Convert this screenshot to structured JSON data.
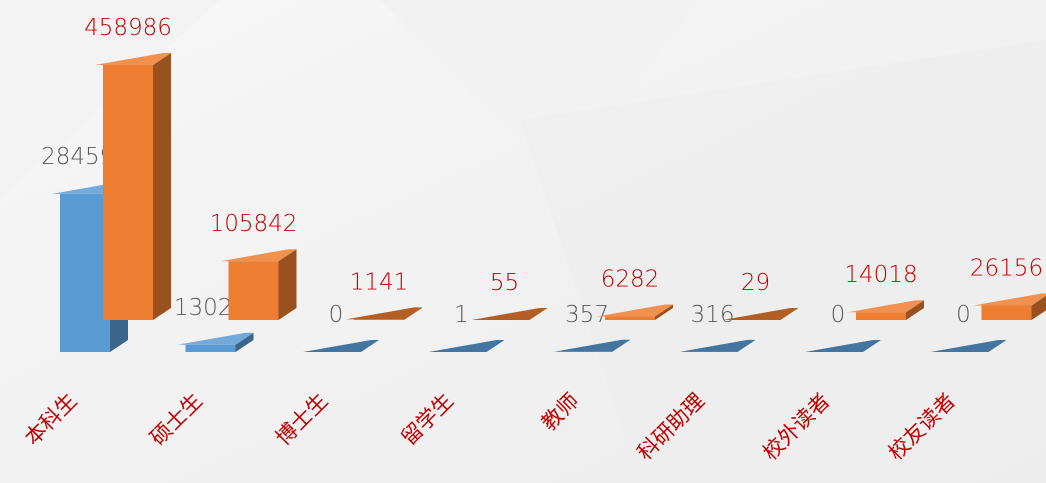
{
  "chart_data": {
    "type": "bar3d",
    "categories": [
      "本科生",
      "硕士生",
      "博士生",
      "留学生",
      "教师",
      "科研助理",
      "校外读者",
      "校友读者"
    ],
    "series": [
      {
        "color": "#5b9bd5",
        "label_color": "#595959",
        "values": [
          284597,
          13028,
          0,
          1,
          357,
          316,
          0,
          0
        ]
      },
      {
        "color": "#ed7d31",
        "label_color": "#c00000",
        "values": [
          458986,
          105842,
          1141,
          55,
          6282,
          29,
          14018,
          26156
        ]
      }
    ]
  }
}
